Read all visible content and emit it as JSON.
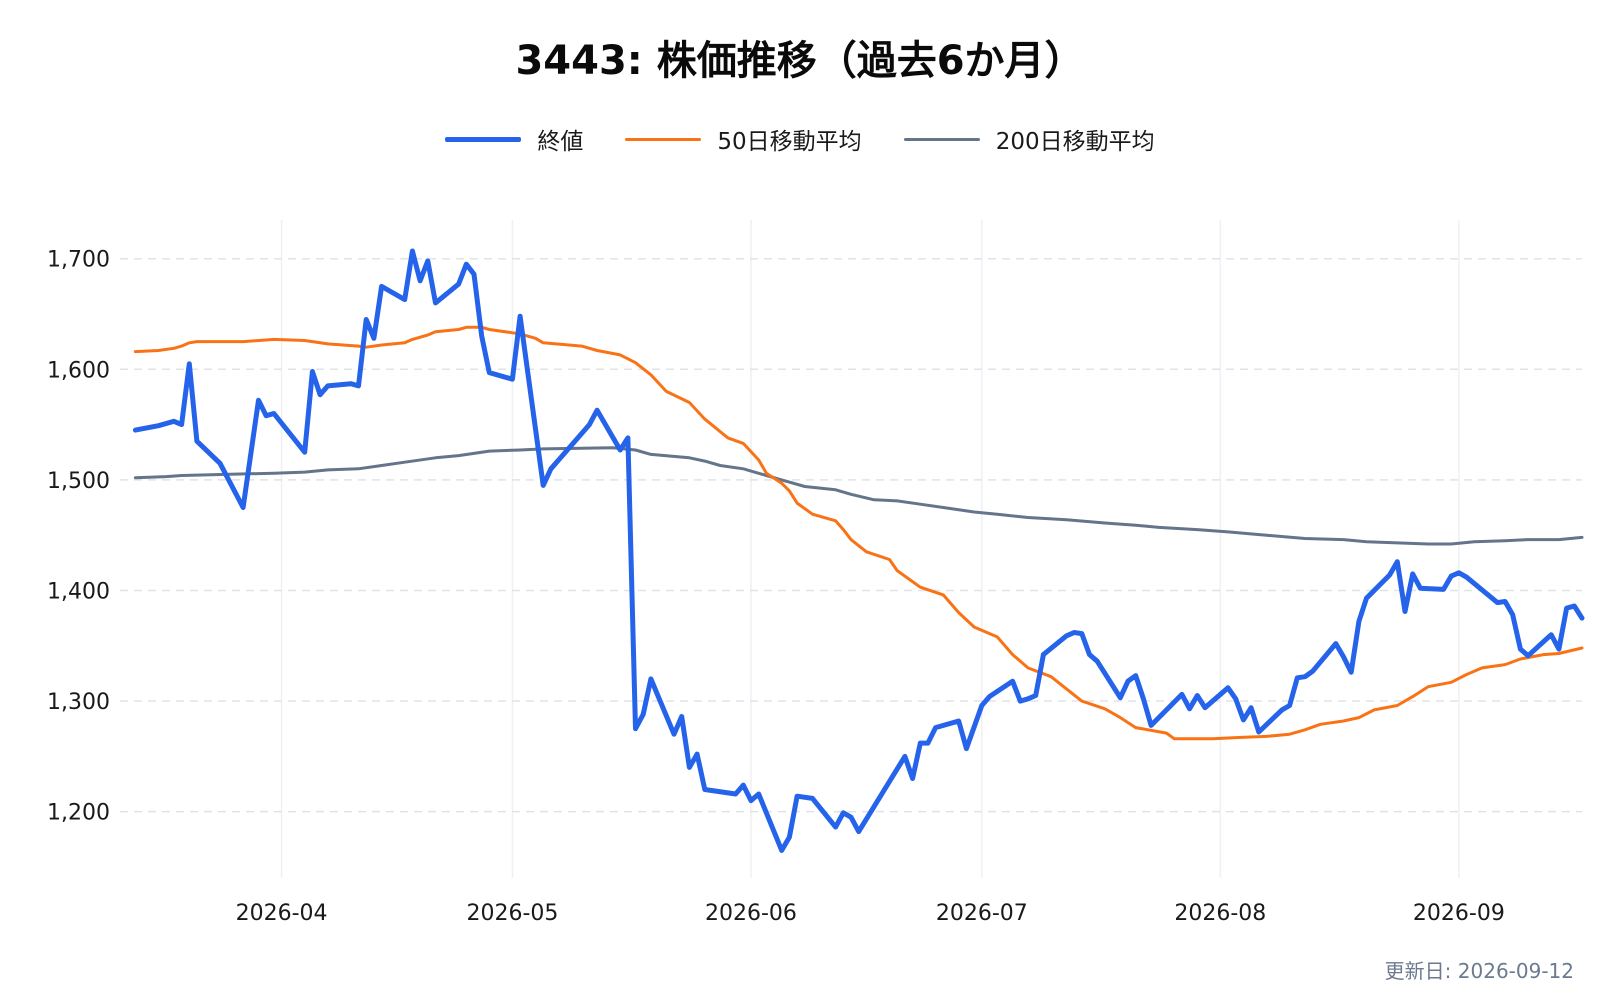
{
  "page": {
    "updated_label": "更新日: 2026-09-12"
  },
  "chart_data": {
    "type": "line",
    "title": "3443: 株価推移（過去6か月）",
    "xlabel": "",
    "ylabel": "",
    "x_type": "date",
    "xlim": [
      "2026-03-11",
      "2026-09-17"
    ],
    "ylim": [
      1140,
      1735
    ],
    "grid": {
      "horizontal": "dashed",
      "vertical": "solid-light"
    },
    "legend_position": "top-center",
    "x_ticks": [
      {
        "date": "2026-04-01",
        "label": "2026-04"
      },
      {
        "date": "2026-05-01",
        "label": "2026-05"
      },
      {
        "date": "2026-06-01",
        "label": "2026-06"
      },
      {
        "date": "2026-07-01",
        "label": "2026-07"
      },
      {
        "date": "2026-08-01",
        "label": "2026-08"
      },
      {
        "date": "2026-09-01",
        "label": "2026-09"
      }
    ],
    "y_ticks": [
      {
        "value": 1200,
        "label": "1,200"
      },
      {
        "value": 1300,
        "label": "1,300"
      },
      {
        "value": 1400,
        "label": "1,400"
      },
      {
        "value": 1500,
        "label": "1,500"
      },
      {
        "value": 1600,
        "label": "1,600"
      },
      {
        "value": 1700,
        "label": "1,700"
      }
    ],
    "series": [
      {
        "name": "終値",
        "color": "#2563eb",
        "width": 5,
        "points": [
          [
            "2026-03-13",
            1545
          ],
          [
            "2026-03-16",
            1549
          ],
          [
            "2026-03-17",
            1551
          ],
          [
            "2026-03-18",
            1553
          ],
          [
            "2026-03-19",
            1550
          ],
          [
            "2026-03-20",
            1605
          ],
          [
            "2026-03-21",
            1535
          ],
          [
            "2026-03-24",
            1515
          ],
          [
            "2026-03-27",
            1475
          ],
          [
            "2026-03-29",
            1572
          ],
          [
            "2026-03-30",
            1558
          ],
          [
            "2026-03-31",
            1560
          ],
          [
            "2026-04-04",
            1525
          ],
          [
            "2026-04-05",
            1598
          ],
          [
            "2026-04-06",
            1577
          ],
          [
            "2026-04-07",
            1585
          ],
          [
            "2026-04-10",
            1587
          ],
          [
            "2026-04-11",
            1585
          ],
          [
            "2026-04-12",
            1645
          ],
          [
            "2026-04-13",
            1628
          ],
          [
            "2026-04-14",
            1675
          ],
          [
            "2026-04-17",
            1663
          ],
          [
            "2026-04-18",
            1707
          ],
          [
            "2026-04-19",
            1680
          ],
          [
            "2026-04-20",
            1698
          ],
          [
            "2026-04-21",
            1660
          ],
          [
            "2026-04-24",
            1677
          ],
          [
            "2026-04-25",
            1695
          ],
          [
            "2026-04-26",
            1686
          ],
          [
            "2026-04-27",
            1630
          ],
          [
            "2026-04-28",
            1597
          ],
          [
            "2026-05-01",
            1591
          ],
          [
            "2026-05-02",
            1648
          ],
          [
            "2026-05-05",
            1495
          ],
          [
            "2026-05-06",
            1510
          ],
          [
            "2026-05-07",
            1518
          ],
          [
            "2026-05-11",
            1550
          ],
          [
            "2026-05-12",
            1563
          ],
          [
            "2026-05-15",
            1527
          ],
          [
            "2026-05-16",
            1538
          ],
          [
            "2026-05-17",
            1275
          ],
          [
            "2026-05-18",
            1288
          ],
          [
            "2026-05-19",
            1320
          ],
          [
            "2026-05-22",
            1270
          ],
          [
            "2026-05-23",
            1286
          ],
          [
            "2026-05-24",
            1240
          ],
          [
            "2026-05-25",
            1252
          ],
          [
            "2026-05-26",
            1220
          ],
          [
            "2026-05-30",
            1216
          ],
          [
            "2026-05-31",
            1224
          ],
          [
            "2026-06-01",
            1210
          ],
          [
            "2026-06-02",
            1216
          ],
          [
            "2026-06-05",
            1165
          ],
          [
            "2026-06-06",
            1177
          ],
          [
            "2026-06-07",
            1214
          ],
          [
            "2026-06-09",
            1212
          ],
          [
            "2026-06-12",
            1186
          ],
          [
            "2026-06-13",
            1199
          ],
          [
            "2026-06-14",
            1195
          ],
          [
            "2026-06-15",
            1182
          ],
          [
            "2026-06-21",
            1250
          ],
          [
            "2026-06-22",
            1230
          ],
          [
            "2026-06-23",
            1262
          ],
          [
            "2026-06-24",
            1262
          ],
          [
            "2026-06-25",
            1276
          ],
          [
            "2026-06-28",
            1282
          ],
          [
            "2026-06-29",
            1257
          ],
          [
            "2026-07-01",
            1296
          ],
          [
            "2026-07-02",
            1304
          ],
          [
            "2026-07-05",
            1318
          ],
          [
            "2026-07-06",
            1300
          ],
          [
            "2026-07-07",
            1302
          ],
          [
            "2026-07-08",
            1305
          ],
          [
            "2026-07-09",
            1342
          ],
          [
            "2026-07-12",
            1359
          ],
          [
            "2026-07-13",
            1362
          ],
          [
            "2026-07-14",
            1361
          ],
          [
            "2026-07-15",
            1342
          ],
          [
            "2026-07-16",
            1336
          ],
          [
            "2026-07-19",
            1303
          ],
          [
            "2026-07-20",
            1318
          ],
          [
            "2026-07-21",
            1323
          ],
          [
            "2026-07-22",
            1302
          ],
          [
            "2026-07-23",
            1278
          ],
          [
            "2026-07-27",
            1306
          ],
          [
            "2026-07-28",
            1293
          ],
          [
            "2026-07-29",
            1305
          ],
          [
            "2026-07-30",
            1294
          ],
          [
            "2026-08-02",
            1312
          ],
          [
            "2026-08-03",
            1302
          ],
          [
            "2026-08-04",
            1283
          ],
          [
            "2026-08-05",
            1294
          ],
          [
            "2026-08-06",
            1272
          ],
          [
            "2026-08-09",
            1292
          ],
          [
            "2026-08-10",
            1296
          ],
          [
            "2026-08-11",
            1321
          ],
          [
            "2026-08-12",
            1322
          ],
          [
            "2026-08-13",
            1327
          ],
          [
            "2026-08-16",
            1352
          ],
          [
            "2026-08-17",
            1340
          ],
          [
            "2026-08-18",
            1326
          ],
          [
            "2026-08-19",
            1372
          ],
          [
            "2026-08-20",
            1393
          ],
          [
            "2026-08-23",
            1414
          ],
          [
            "2026-08-24",
            1426
          ],
          [
            "2026-08-25",
            1381
          ],
          [
            "2026-08-26",
            1415
          ],
          [
            "2026-08-27",
            1402
          ],
          [
            "2026-08-30",
            1401
          ],
          [
            "2026-08-31",
            1413
          ],
          [
            "2026-09-01",
            1416
          ],
          [
            "2026-09-02",
            1412
          ],
          [
            "2026-09-06",
            1389
          ],
          [
            "2026-09-07",
            1390
          ],
          [
            "2026-09-08",
            1378
          ],
          [
            "2026-09-09",
            1347
          ],
          [
            "2026-09-10",
            1341
          ],
          [
            "2026-09-13",
            1360
          ],
          [
            "2026-09-14",
            1347
          ],
          [
            "2026-09-15",
            1384
          ],
          [
            "2026-09-16",
            1386
          ],
          [
            "2026-09-17",
            1375
          ]
        ]
      },
      {
        "name": "50日移動平均",
        "color": "#f97316",
        "width": 3,
        "points": [
          [
            "2026-03-13",
            1616
          ],
          [
            "2026-03-16",
            1617
          ],
          [
            "2026-03-17",
            1618
          ],
          [
            "2026-03-18",
            1619
          ],
          [
            "2026-03-19",
            1621
          ],
          [
            "2026-03-20",
            1624
          ],
          [
            "2026-03-21",
            1625
          ],
          [
            "2026-03-27",
            1625
          ],
          [
            "2026-03-31",
            1627
          ],
          [
            "2026-04-04",
            1626
          ],
          [
            "2026-04-07",
            1623
          ],
          [
            "2026-04-11",
            1621
          ],
          [
            "2026-04-12",
            1620
          ],
          [
            "2026-04-14",
            1622
          ],
          [
            "2026-04-17",
            1624
          ],
          [
            "2026-04-18",
            1627
          ],
          [
            "2026-04-20",
            1631
          ],
          [
            "2026-04-21",
            1634
          ],
          [
            "2026-04-24",
            1636
          ],
          [
            "2026-04-25",
            1638
          ],
          [
            "2026-04-27",
            1638
          ],
          [
            "2026-04-28",
            1636
          ],
          [
            "2026-05-01",
            1633
          ],
          [
            "2026-05-02",
            1632
          ],
          [
            "2026-05-04",
            1628
          ],
          [
            "2026-05-05",
            1624
          ],
          [
            "2026-05-10",
            1621
          ],
          [
            "2026-05-12",
            1617
          ],
          [
            "2026-05-15",
            1613
          ],
          [
            "2026-05-17",
            1606
          ],
          [
            "2026-05-19",
            1595
          ],
          [
            "2026-05-21",
            1580
          ],
          [
            "2026-05-24",
            1570
          ],
          [
            "2026-05-26",
            1555
          ],
          [
            "2026-05-29",
            1538
          ],
          [
            "2026-05-31",
            1533
          ],
          [
            "2026-06-02",
            1518
          ],
          [
            "2026-06-03",
            1506
          ],
          [
            "2026-06-05",
            1497
          ],
          [
            "2026-06-06",
            1490
          ],
          [
            "2026-06-07",
            1479
          ],
          [
            "2026-06-09",
            1469
          ],
          [
            "2026-06-12",
            1463
          ],
          [
            "2026-06-13",
            1455
          ],
          [
            "2026-06-14",
            1446
          ],
          [
            "2026-06-16",
            1435
          ],
          [
            "2026-06-19",
            1428
          ],
          [
            "2026-06-20",
            1418
          ],
          [
            "2026-06-23",
            1403
          ],
          [
            "2026-06-26",
            1396
          ],
          [
            "2026-06-28",
            1380
          ],
          [
            "2026-06-30",
            1367
          ],
          [
            "2026-07-03",
            1358
          ],
          [
            "2026-07-05",
            1342
          ],
          [
            "2026-07-07",
            1330
          ],
          [
            "2026-07-10",
            1322
          ],
          [
            "2026-07-12",
            1311
          ],
          [
            "2026-07-14",
            1300
          ],
          [
            "2026-07-17",
            1293
          ],
          [
            "2026-07-19",
            1285
          ],
          [
            "2026-07-21",
            1276
          ],
          [
            "2026-07-25",
            1271
          ],
          [
            "2026-07-26",
            1266
          ],
          [
            "2026-07-31",
            1266
          ],
          [
            "2026-08-03",
            1267
          ],
          [
            "2026-08-07",
            1268
          ],
          [
            "2026-08-10",
            1270
          ],
          [
            "2026-08-12",
            1274
          ],
          [
            "2026-08-14",
            1279
          ],
          [
            "2026-08-17",
            1282
          ],
          [
            "2026-08-19",
            1285
          ],
          [
            "2026-08-21",
            1292
          ],
          [
            "2026-08-24",
            1296
          ],
          [
            "2026-08-26",
            1304
          ],
          [
            "2026-08-28",
            1313
          ],
          [
            "2026-08-31",
            1317
          ],
          [
            "2026-09-02",
            1324
          ],
          [
            "2026-09-04",
            1330
          ],
          [
            "2026-09-07",
            1333
          ],
          [
            "2026-09-09",
            1338
          ],
          [
            "2026-09-12",
            1342
          ],
          [
            "2026-09-14",
            1343
          ],
          [
            "2026-09-17",
            1348
          ]
        ]
      },
      {
        "name": "200日移動平均",
        "color": "#64748b",
        "width": 3,
        "points": [
          [
            "2026-03-13",
            1502
          ],
          [
            "2026-03-17",
            1503
          ],
          [
            "2026-03-19",
            1504
          ],
          [
            "2026-03-31",
            1506
          ],
          [
            "2026-04-04",
            1507
          ],
          [
            "2026-04-07",
            1509
          ],
          [
            "2026-04-11",
            1510
          ],
          [
            "2026-04-14",
            1513
          ],
          [
            "2026-04-17",
            1516
          ],
          [
            "2026-04-21",
            1520
          ],
          [
            "2026-04-24",
            1522
          ],
          [
            "2026-04-28",
            1526
          ],
          [
            "2026-05-02",
            1527
          ],
          [
            "2026-05-05",
            1528
          ],
          [
            "2026-05-14",
            1529
          ],
          [
            "2026-05-17",
            1527
          ],
          [
            "2026-05-19",
            1523
          ],
          [
            "2026-05-24",
            1520
          ],
          [
            "2026-05-26",
            1517
          ],
          [
            "2026-05-28",
            1513
          ],
          [
            "2026-05-31",
            1510
          ],
          [
            "2026-06-03",
            1504
          ],
          [
            "2026-06-05",
            1500
          ],
          [
            "2026-06-08",
            1494
          ],
          [
            "2026-06-12",
            1491
          ],
          [
            "2026-06-14",
            1487
          ],
          [
            "2026-06-17",
            1482
          ],
          [
            "2026-06-20",
            1481
          ],
          [
            "2026-06-23",
            1478
          ],
          [
            "2026-06-26",
            1475
          ],
          [
            "2026-06-30",
            1471
          ],
          [
            "2026-07-03",
            1469
          ],
          [
            "2026-07-07",
            1466
          ],
          [
            "2026-07-12",
            1464
          ],
          [
            "2026-07-17",
            1461
          ],
          [
            "2026-07-21",
            1459
          ],
          [
            "2026-07-24",
            1457
          ],
          [
            "2026-07-29",
            1455
          ],
          [
            "2026-08-02",
            1453
          ],
          [
            "2026-08-07",
            1450
          ],
          [
            "2026-08-12",
            1447
          ],
          [
            "2026-08-17",
            1446
          ],
          [
            "2026-08-20",
            1444
          ],
          [
            "2026-08-24",
            1443
          ],
          [
            "2026-08-28",
            1442
          ],
          [
            "2026-08-31",
            1442
          ],
          [
            "2026-09-03",
            1444
          ],
          [
            "2026-09-07",
            1445
          ],
          [
            "2026-09-10",
            1446
          ],
          [
            "2026-09-14",
            1446
          ],
          [
            "2026-09-17",
            1448
          ]
        ]
      }
    ]
  }
}
